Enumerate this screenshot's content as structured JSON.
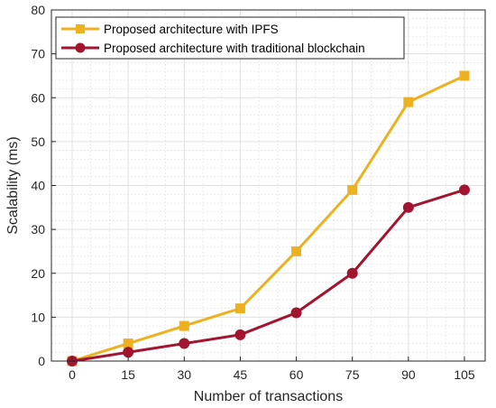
{
  "chart_data": {
    "type": "line",
    "x": [
      0,
      15,
      30,
      45,
      60,
      75,
      90,
      105
    ],
    "series": [
      {
        "name": "Proposed architecture with IPFS",
        "values": [
          0,
          4,
          8,
          12,
          25,
          39,
          59,
          65
        ],
        "color": "#EDB120",
        "marker": "square"
      },
      {
        "name": "Proposed architecture with traditional blockchain",
        "values": [
          0,
          2,
          4,
          6,
          11,
          20,
          35,
          39
        ],
        "color": "#A2142F",
        "marker": "circle"
      }
    ],
    "xlabel": "Number of transactions",
    "ylabel": "Scalability (ms)",
    "ylim": [
      0,
      80
    ],
    "yticks": [
      0,
      10,
      20,
      30,
      40,
      50,
      60,
      70,
      80
    ],
    "grid": true,
    "legend_position": "top-left"
  }
}
